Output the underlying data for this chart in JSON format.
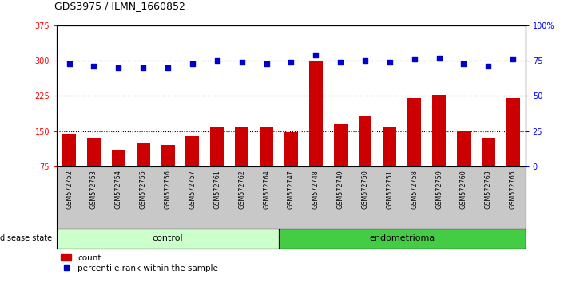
{
  "title": "GDS3975 / ILMN_1660852",
  "samples": [
    "GSM572752",
    "GSM572753",
    "GSM572754",
    "GSM572755",
    "GSM572756",
    "GSM572757",
    "GSM572761",
    "GSM572762",
    "GSM572764",
    "GSM572747",
    "GSM572748",
    "GSM572749",
    "GSM572750",
    "GSM572751",
    "GSM572758",
    "GSM572759",
    "GSM572760",
    "GSM572763",
    "GSM572765"
  ],
  "red_values": [
    145,
    135,
    110,
    125,
    120,
    140,
    160,
    158,
    157,
    148,
    300,
    165,
    183,
    157,
    220,
    228,
    150,
    135,
    220
  ],
  "blue_values": [
    73,
    71,
    70,
    70,
    70,
    73,
    75,
    74,
    73,
    74,
    79,
    74,
    75,
    74,
    76,
    77,
    73,
    71,
    76
  ],
  "control_count": 9,
  "endometrioma_count": 10,
  "ylim_left": [
    75,
    375
  ],
  "ylim_right": [
    0,
    100
  ],
  "yticks_left": [
    75,
    150,
    225,
    300,
    375
  ],
  "yticks_right": [
    0,
    25,
    50,
    75,
    100
  ],
  "ytick_labels_right": [
    "0",
    "25",
    "50",
    "75",
    "100%"
  ],
  "bar_color": "#cc0000",
  "dot_color": "#0000cc",
  "control_bg": "#ccffcc",
  "endometrioma_bg": "#44cc44",
  "label_bg": "#c8c8c8",
  "dotted_lines": [
    150,
    225,
    300
  ],
  "legend_red_label": "count",
  "legend_blue_label": "percentile rank within the sample",
  "disease_state_label": "disease state"
}
